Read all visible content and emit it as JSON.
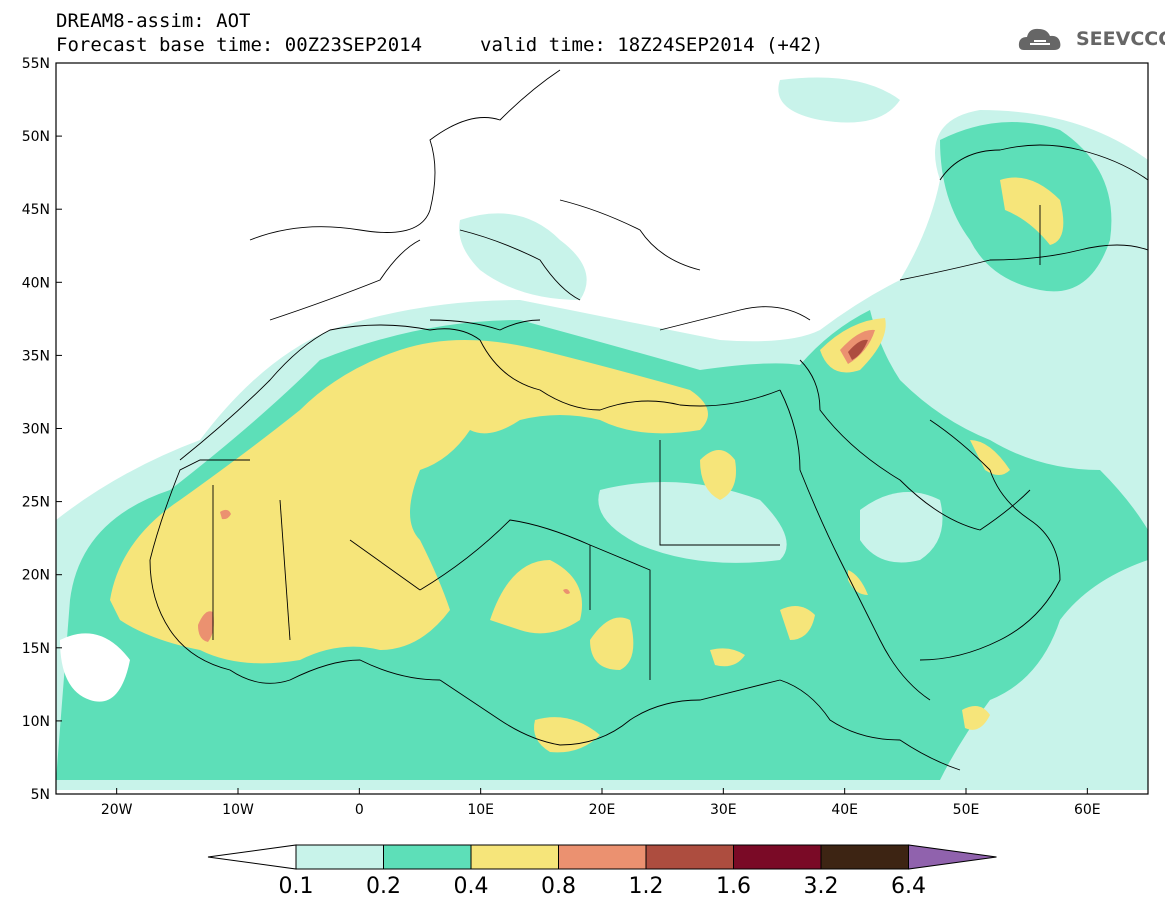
{
  "header": {
    "title": "DREAM8-assim: AOT",
    "base_time": "Forecast base time: 00Z23SEP2014",
    "valid_time": "valid time: 18Z24SEP2014 (+42)"
  },
  "logo": {
    "text": "SEEVCCC",
    "icon": "cloud-icon"
  },
  "map": {
    "lat_labels": [
      "55N",
      "50N",
      "45N",
      "40N",
      "35N",
      "30N",
      "25N",
      "20N",
      "15N",
      "10N",
      "5N"
    ],
    "lon_labels": [
      "20W",
      "10W",
      "0",
      "10E",
      "20E",
      "30E",
      "40E",
      "50E",
      "60E"
    ],
    "lon_range": [
      -25,
      65
    ],
    "lat_range": [
      5,
      55
    ]
  },
  "colorbar": {
    "labels": [
      "0.1",
      "0.2",
      "0.4",
      "0.8",
      "1.2",
      "1.6",
      "3.2",
      "6.4"
    ],
    "colors": [
      "#ffffff",
      "#c8f3ea",
      "#5ddfb8",
      "#f6e57a",
      "#eb9170",
      "#ad4d3f",
      "#7a0a26",
      "#3d2413",
      "#9062ad"
    ]
  }
}
